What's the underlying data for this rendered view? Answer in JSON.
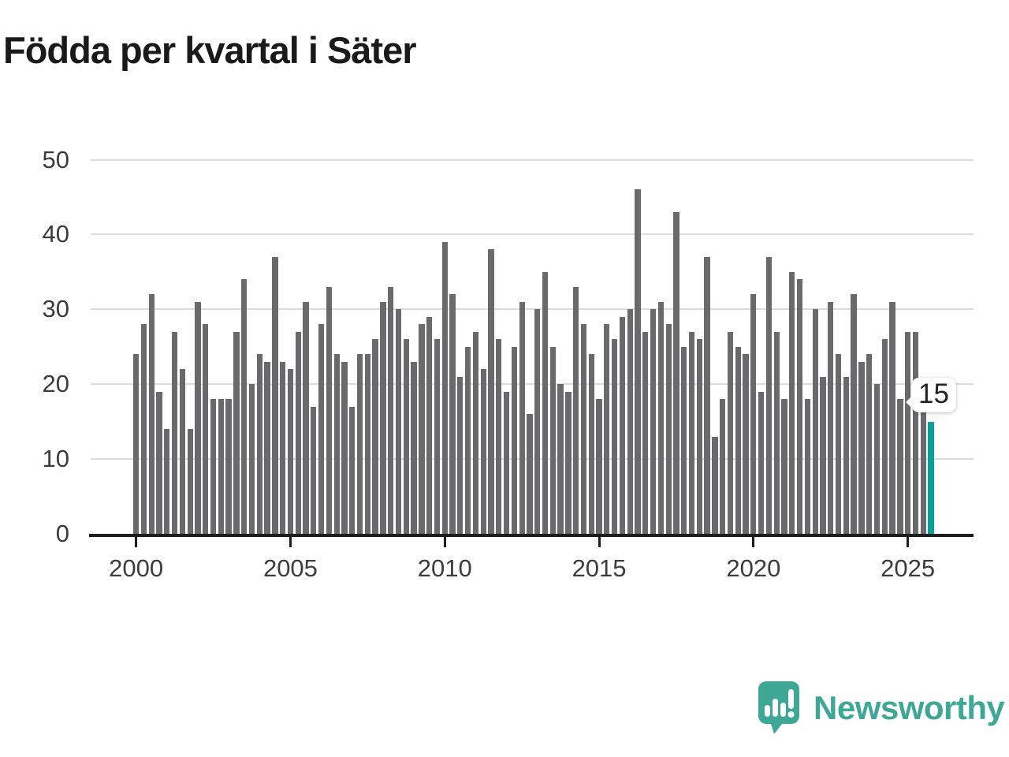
{
  "title": "Födda per kvartal i Säter",
  "footer": {
    "brand": "Newsworthy"
  },
  "chart_data": {
    "type": "bar",
    "title": "Födda per kvartal i Säter",
    "x_start": "2000-Q1",
    "x_interval": "quarter",
    "values": [
      24,
      28,
      32,
      19,
      14,
      27,
      22,
      14,
      31,
      28,
      18,
      18,
      18,
      27,
      34,
      20,
      24,
      23,
      37,
      23,
      22,
      27,
      31,
      17,
      28,
      33,
      24,
      23,
      17,
      24,
      24,
      26,
      31,
      33,
      30,
      26,
      23,
      28,
      29,
      26,
      39,
      32,
      21,
      25,
      27,
      22,
      38,
      26,
      19,
      25,
      31,
      16,
      30,
      35,
      25,
      20,
      19,
      33,
      28,
      24,
      18,
      28,
      26,
      29,
      30,
      46,
      27,
      30,
      31,
      28,
      43,
      25,
      27,
      26,
      37,
      13,
      18,
      27,
      25,
      24,
      32,
      19,
      37,
      27,
      18,
      35,
      34,
      18,
      30,
      21,
      31,
      24,
      21,
      32,
      23,
      24,
      20,
      26,
      31,
      18,
      27,
      27,
      17,
      15
    ],
    "x_tick_years": [
      2000,
      2005,
      2010,
      2015,
      2020,
      2025
    ],
    "y_ticks": [
      0,
      10,
      20,
      30,
      40,
      50
    ],
    "ylim": [
      0,
      50
    ],
    "grid": "horizontal",
    "bar_color": "#6a6a6d",
    "highlight_color": "#09a098",
    "highlight_last": true,
    "annotation": {
      "label": "15"
    }
  }
}
